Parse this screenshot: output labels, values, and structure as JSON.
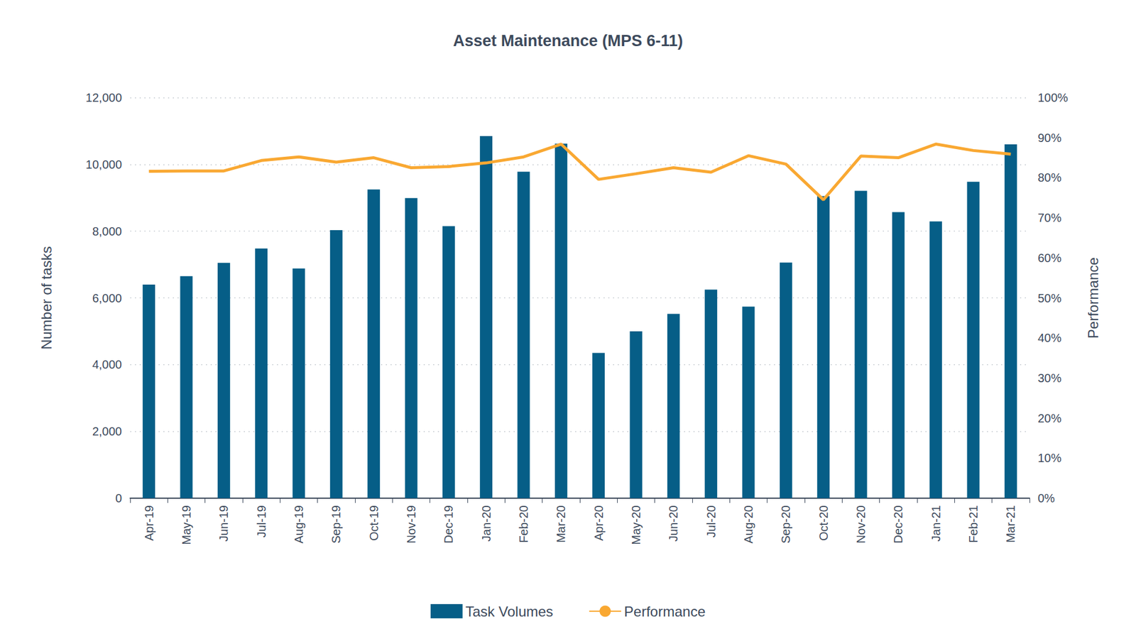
{
  "chart_data": {
    "type": "bar",
    "title": "Asset Maintenance (MPS 6-11)",
    "y_label": "Number of tasks",
    "y2_label": "Performance",
    "categories": [
      "Apr-19",
      "May-19",
      "Jun-19",
      "Jul-19",
      "Aug-19",
      "Sep-19",
      "Oct-19",
      "Nov-19",
      "Dec-19",
      "Jan-20",
      "Feb-20",
      "Mar-20",
      "Apr-20",
      "May-20",
      "Jun-20",
      "Jul-20",
      "Aug-20",
      "Sep-20",
      "Oct-20",
      "Nov-20",
      "Dec-20",
      "Jan-21",
      "Feb-21",
      "Mar-21"
    ],
    "series": [
      {
        "name": "Task Volumes",
        "type": "bar",
        "color": "#065e87",
        "values": [
          6400,
          6650,
          7050,
          7480,
          6880,
          8030,
          9250,
          8990,
          8150,
          10850,
          9780,
          10620,
          4350,
          5000,
          5520,
          6250,
          5740,
          7060,
          9050,
          9210,
          8570,
          8290,
          9480,
          10600
        ]
      },
      {
        "name": "Performance",
        "type": "line",
        "axis": "y2",
        "color": "#f9a832",
        "line_style": "solid",
        "values": [
          81.6,
          81.7,
          81.7,
          84.3,
          85.2,
          83.9,
          85.0,
          82.5,
          82.8,
          83.7,
          85.2,
          88.4,
          79.6,
          81.0,
          82.5,
          81.4,
          85.5,
          83.4,
          74.5,
          85.4,
          85.0,
          88.4,
          86.8,
          85.9
        ]
      }
    ],
    "ylim": [
      0,
      12000
    ],
    "yticks": [
      0,
      {
        "value": 2000,
        "label": "2,000"
      },
      {
        "value": 4000,
        "label": "4,000"
      },
      {
        "value": 6000,
        "label": "6,000"
      },
      {
        "value": 8000,
        "label": "8,000"
      },
      {
        "value": 10000,
        "label": "10,000"
      },
      {
        "value": 12000,
        "label": "12,000"
      }
    ],
    "y2lim": [
      0,
      100
    ],
    "y2ticks": [
      {
        "value": 0,
        "label": "0%"
      },
      {
        "value": 10,
        "label": "10%"
      },
      {
        "value": 20,
        "label": "20%"
      },
      {
        "value": 30,
        "label": "30%"
      },
      {
        "value": 40,
        "label": "40%"
      },
      {
        "value": 50,
        "label": "50%"
      },
      {
        "value": 60,
        "label": "60%"
      },
      {
        "value": 70,
        "label": "70%"
      },
      {
        "value": 80,
        "label": "80%"
      },
      {
        "value": 90,
        "label": "90%"
      },
      {
        "value": 100,
        "label": "100%"
      }
    ],
    "grid": true,
    "legend": "bottom"
  }
}
